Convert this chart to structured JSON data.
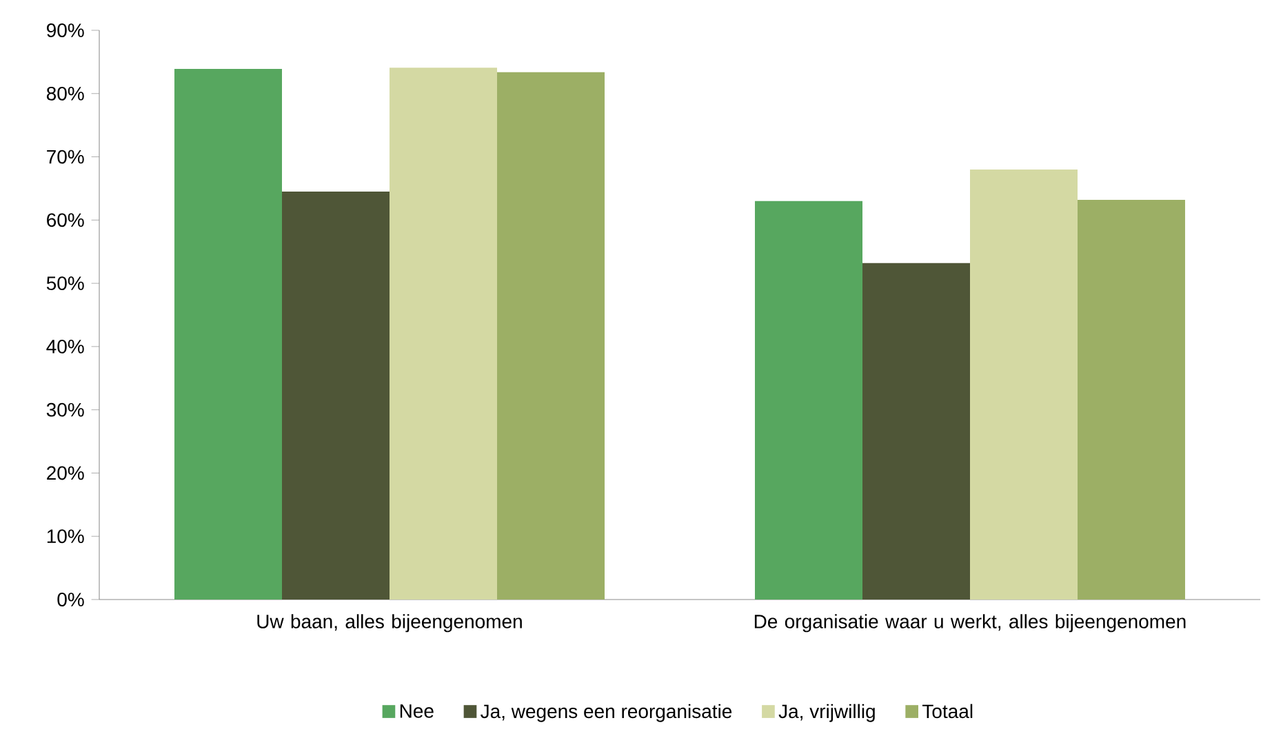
{
  "chart_data": {
    "type": "bar",
    "categories": [
      "Uw baan, alles bijeengenomen",
      "De organisatie waar u werkt, alles bijeengenomen"
    ],
    "series": [
      {
        "name": "Nee",
        "color": "#57a75f",
        "values": [
          83.9,
          63.0
        ]
      },
      {
        "name": "Ja, wegens een reorganisatie",
        "color": "#4f5637",
        "values": [
          64.5,
          53.2
        ]
      },
      {
        "name": "Ja, vrijwillig",
        "color": "#d4d9a3",
        "values": [
          84.1,
          68.0
        ]
      },
      {
        "name": "Totaal",
        "color": "#9caf65",
        "values": [
          83.4,
          63.2
        ]
      }
    ],
    "ylim": [
      0,
      90
    ],
    "yticks": [
      {
        "value": 0,
        "label": "0%"
      },
      {
        "value": 10,
        "label": "10%"
      },
      {
        "value": 20,
        "label": "20%"
      },
      {
        "value": 30,
        "label": "30%"
      },
      {
        "value": 40,
        "label": "40%"
      },
      {
        "value": 50,
        "label": "50%"
      },
      {
        "value": 60,
        "label": "60%"
      },
      {
        "value": 70,
        "label": "70%"
      },
      {
        "value": 80,
        "label": "80%"
      },
      {
        "value": 90,
        "label": "90%"
      }
    ],
    "grid": false,
    "legend": "bottom"
  }
}
